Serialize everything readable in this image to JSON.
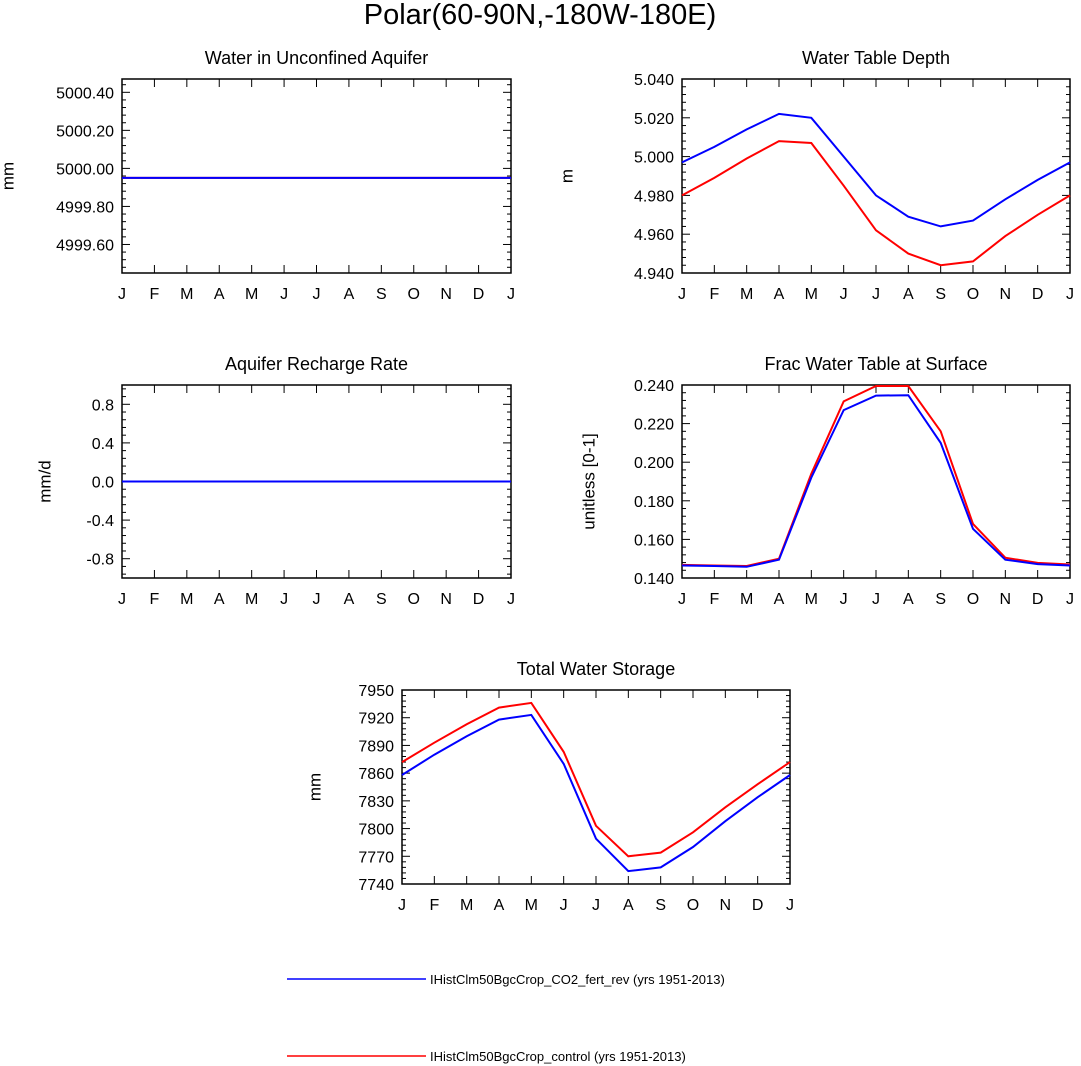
{
  "figure": {
    "title": "Polar(60-90N,-180W-180E)",
    "colors": {
      "series1": "#0000ff",
      "series2": "#ff0000",
      "axis": "#000000",
      "background": "#ffffff"
    }
  },
  "chart_data": [
    {
      "type": "line",
      "title": "Water in Unconfined Aquifer",
      "xlabel": "",
      "ylabel": "mm",
      "x": [
        "J",
        "F",
        "M",
        "A",
        "M",
        "J",
        "J",
        "A",
        "S",
        "O",
        "N",
        "D",
        "J"
      ],
      "ylim": [
        4999.45,
        5000.47
      ],
      "yticks": [
        4999.6,
        4999.8,
        5000.0,
        5000.2,
        5000.4
      ],
      "ytick_labels": [
        "4999.60",
        "4999.80",
        "5000.00",
        "5000.20",
        "5000.40"
      ],
      "series": [
        {
          "name": "IHistClm50BgcCrop_CO2_fert_rev (yrs 1951-2013)",
          "color": "#0000ff",
          "values": [
            4999.95,
            4999.95,
            4999.95,
            4999.95,
            4999.95,
            4999.95,
            4999.95,
            4999.95,
            4999.95,
            4999.95,
            4999.95,
            4999.95,
            4999.95
          ]
        },
        {
          "name": "IHistClm50BgcCrop_control (yrs 1951-2013)",
          "color": "#ff0000",
          "values": [
            4999.95,
            4999.95,
            4999.95,
            4999.95,
            4999.95,
            4999.95,
            4999.95,
            4999.95,
            4999.95,
            4999.95,
            4999.95,
            4999.95,
            4999.95
          ]
        }
      ]
    },
    {
      "type": "line",
      "title": "Water Table Depth",
      "xlabel": "",
      "ylabel": "m",
      "x": [
        "J",
        "F",
        "M",
        "A",
        "M",
        "J",
        "J",
        "A",
        "S",
        "O",
        "N",
        "D",
        "J"
      ],
      "ylim": [
        4.94,
        5.04
      ],
      "yticks": [
        4.94,
        4.96,
        4.98,
        5.0,
        5.02,
        5.04
      ],
      "ytick_labels": [
        "4.940",
        "4.960",
        "4.980",
        "5.000",
        "5.020",
        "5.040"
      ],
      "series": [
        {
          "name": "IHistClm50BgcCrop_CO2_fert_rev (yrs 1951-2013)",
          "color": "#0000ff",
          "values": [
            4.997,
            5.005,
            5.014,
            5.022,
            5.02,
            5.0,
            4.98,
            4.969,
            4.964,
            4.967,
            4.978,
            4.988,
            4.997
          ]
        },
        {
          "name": "IHistClm50BgcCrop_control (yrs 1951-2013)",
          "color": "#ff0000",
          "values": [
            4.98,
            4.989,
            4.999,
            5.008,
            5.007,
            4.985,
            4.962,
            4.95,
            4.944,
            4.946,
            4.959,
            4.97,
            4.98
          ]
        }
      ]
    },
    {
      "type": "line",
      "title": "Aquifer Recharge Rate",
      "xlabel": "",
      "ylabel": "mm/d",
      "x": [
        "J",
        "F",
        "M",
        "A",
        "M",
        "J",
        "J",
        "A",
        "S",
        "O",
        "N",
        "D",
        "J"
      ],
      "ylim": [
        -1.0,
        1.0
      ],
      "yticks": [
        -0.8,
        -0.4,
        0.0,
        0.4,
        0.8
      ],
      "ytick_labels": [
        "-0.8",
        "-0.4",
        "0.0",
        "0.4",
        "0.8"
      ],
      "series": [
        {
          "name": "IHistClm50BgcCrop_CO2_fert_rev (yrs 1951-2013)",
          "color": "#0000ff",
          "values": [
            0,
            0,
            0,
            0,
            0,
            0,
            0,
            0,
            0,
            0,
            0,
            0,
            0
          ]
        },
        {
          "name": "IHistClm50BgcCrop_control (yrs 1951-2013)",
          "color": "#ff0000",
          "values": [
            0,
            0,
            0,
            0,
            0,
            0,
            0,
            0,
            0,
            0,
            0,
            0,
            0
          ]
        }
      ]
    },
    {
      "type": "line",
      "title": "Frac Water Table at Surface",
      "xlabel": "",
      "ylabel": "unitless [0-1]",
      "x": [
        "J",
        "F",
        "M",
        "A",
        "M",
        "J",
        "J",
        "A",
        "S",
        "O",
        "N",
        "D",
        "J"
      ],
      "ylim": [
        0.14,
        0.24
      ],
      "yticks": [
        0.14,
        0.16,
        0.18,
        0.2,
        0.22,
        0.24
      ],
      "ytick_labels": [
        "0.140",
        "0.160",
        "0.180",
        "0.200",
        "0.220",
        "0.240"
      ],
      "series": [
        {
          "name": "IHistClm50BgcCrop_CO2_fert_rev (yrs 1951-2013)",
          "color": "#0000ff",
          "values": [
            0.1465,
            0.1462,
            0.1458,
            0.1495,
            0.192,
            0.227,
            0.2345,
            0.2347,
            0.21,
            0.1655,
            0.1495,
            0.1472,
            0.1465
          ]
        },
        {
          "name": "IHistClm50BgcCrop_control (yrs 1951-2013)",
          "color": "#ff0000",
          "values": [
            0.1468,
            0.1465,
            0.1462,
            0.15,
            0.194,
            0.2315,
            0.2395,
            0.2395,
            0.216,
            0.168,
            0.1505,
            0.1478,
            0.147
          ]
        }
      ]
    },
    {
      "type": "line",
      "title": "Total Water Storage",
      "xlabel": "",
      "ylabel": "mm",
      "x": [
        "J",
        "F",
        "M",
        "A",
        "M",
        "J",
        "J",
        "A",
        "S",
        "O",
        "N",
        "D",
        "J"
      ],
      "ylim": [
        7740,
        7950
      ],
      "yticks": [
        7740,
        7770,
        7800,
        7830,
        7860,
        7890,
        7920,
        7950
      ],
      "ytick_labels": [
        "7740",
        "7770",
        "7800",
        "7830",
        "7860",
        "7890",
        "7920",
        "7950"
      ],
      "series": [
        {
          "name": "IHistClm50BgcCrop_CO2_fert_rev (yrs 1951-2013)",
          "color": "#0000ff",
          "values": [
            7858,
            7880,
            7900,
            7918,
            7923,
            7870,
            7789,
            7754,
            7758,
            7780,
            7808,
            7834,
            7858
          ]
        },
        {
          "name": "IHistClm50BgcCrop_control (yrs 1951-2013)",
          "color": "#ff0000",
          "values": [
            7872,
            7893,
            7913,
            7931,
            7936,
            7883,
            7803,
            7770,
            7774,
            7796,
            7823,
            7848,
            7872
          ]
        }
      ]
    }
  ],
  "legend": {
    "entries": [
      {
        "label": "IHistClm50BgcCrop_CO2_fert_rev (yrs 1951-2013)",
        "color": "#0000ff"
      },
      {
        "label": "IHistClm50BgcCrop_control (yrs 1951-2013)",
        "color": "#ff0000"
      }
    ]
  }
}
